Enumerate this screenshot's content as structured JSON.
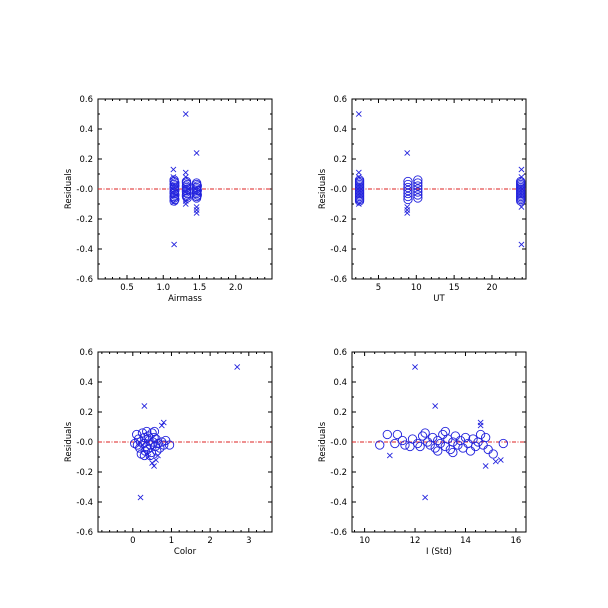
{
  "colors": {
    "marker": "#2222dd",
    "zero_line": "#dd2222",
    "axis": "#000000"
  },
  "chart_data": [
    {
      "type": "scatter",
      "xlabel": "Airmass",
      "ylabel": "Residuals",
      "xlim": [
        0.1,
        2.5
      ],
      "ylim": [
        -0.6,
        0.6
      ],
      "xticks": [
        0.5,
        1.0,
        1.5,
        2.0
      ],
      "xtick_labels": [
        "0.5",
        "1.0",
        "1.5",
        "2.0"
      ],
      "yticks": [
        -0.6,
        -0.4,
        -0.2,
        0.0,
        0.2,
        0.4,
        0.6
      ],
      "ytick_labels": [
        "-0.6",
        "-0.4",
        "-0.2",
        "-0.0",
        "0.2",
        "0.4",
        "0.6"
      ],
      "reference_line": 0,
      "grid": false,
      "series": [
        {
          "marker": "circle",
          "points": [
            [
              1.15,
              0.06
            ],
            [
              1.15,
              0.05
            ],
            [
              1.16,
              0.04
            ],
            [
              1.15,
              0.03
            ],
            [
              1.16,
              0.02
            ],
            [
              1.15,
              0.01
            ],
            [
              1.15,
              0.0
            ],
            [
              1.16,
              -0.01
            ],
            [
              1.15,
              -0.02
            ],
            [
              1.15,
              -0.03
            ],
            [
              1.16,
              -0.04
            ],
            [
              1.15,
              -0.05
            ],
            [
              1.15,
              -0.06
            ],
            [
              1.16,
              -0.07
            ],
            [
              1.15,
              -0.08
            ],
            [
              1.32,
              0.05
            ],
            [
              1.32,
              0.04
            ],
            [
              1.33,
              0.03
            ],
            [
              1.32,
              0.02
            ],
            [
              1.32,
              0.01
            ],
            [
              1.33,
              0.0
            ],
            [
              1.32,
              -0.01
            ],
            [
              1.32,
              -0.02
            ],
            [
              1.33,
              -0.03
            ],
            [
              1.32,
              -0.04
            ],
            [
              1.32,
              -0.05
            ],
            [
              1.33,
              -0.06
            ],
            [
              1.46,
              0.04
            ],
            [
              1.46,
              0.03
            ],
            [
              1.47,
              0.02
            ],
            [
              1.46,
              0.01
            ],
            [
              1.46,
              0.0
            ],
            [
              1.47,
              -0.01
            ],
            [
              1.46,
              -0.02
            ],
            [
              1.46,
              -0.03
            ],
            [
              1.47,
              -0.04
            ],
            [
              1.46,
              -0.05
            ],
            [
              1.46,
              -0.06
            ]
          ]
        },
        {
          "marker": "x",
          "points": [
            [
              1.14,
              0.13
            ],
            [
              1.14,
              0.08
            ],
            [
              1.14,
              -0.09
            ],
            [
              1.15,
              -0.37
            ],
            [
              1.31,
              0.5
            ],
            [
              1.31,
              0.11
            ],
            [
              1.31,
              0.08
            ],
            [
              1.31,
              -0.08
            ],
            [
              1.31,
              -0.1
            ],
            [
              1.46,
              0.24
            ],
            [
              1.46,
              -0.12
            ],
            [
              1.46,
              -0.14
            ],
            [
              1.46,
              -0.16
            ]
          ]
        }
      ]
    },
    {
      "type": "scatter",
      "xlabel": "UT",
      "ylabel": "Residuals",
      "xlim": [
        1.5,
        24.5
      ],
      "ylim": [
        -0.6,
        0.6
      ],
      "xticks": [
        5,
        10,
        15,
        20
      ],
      "xtick_labels": [
        "5",
        "10",
        "15",
        "20"
      ],
      "yticks": [
        -0.6,
        -0.4,
        -0.2,
        0.0,
        0.2,
        0.4,
        0.6
      ],
      "ytick_labels": [
        "-0.6",
        "-0.4",
        "-0.2",
        "-0.0",
        "0.2",
        "0.4",
        "0.6"
      ],
      "reference_line": 0,
      "grid": false,
      "series": [
        {
          "marker": "circle",
          "points": [
            [
              2.5,
              0.06
            ],
            [
              2.5,
              0.05
            ],
            [
              2.5,
              0.04
            ],
            [
              2.5,
              0.03
            ],
            [
              2.5,
              0.02
            ],
            [
              2.5,
              0.01
            ],
            [
              2.5,
              0.0
            ],
            [
              2.5,
              -0.01
            ],
            [
              2.5,
              -0.02
            ],
            [
              2.5,
              -0.03
            ],
            [
              2.5,
              -0.04
            ],
            [
              2.5,
              -0.05
            ],
            [
              2.5,
              -0.06
            ],
            [
              2.5,
              -0.07
            ],
            [
              2.5,
              -0.08
            ],
            [
              8.9,
              0.05
            ],
            [
              8.9,
              0.03
            ],
            [
              8.9,
              0.01
            ],
            [
              8.9,
              -0.01
            ],
            [
              8.9,
              -0.03
            ],
            [
              8.9,
              -0.05
            ],
            [
              8.9,
              -0.07
            ],
            [
              10.2,
              0.06
            ],
            [
              10.2,
              0.04
            ],
            [
              10.2,
              0.02
            ],
            [
              10.2,
              0.0
            ],
            [
              10.2,
              -0.02
            ],
            [
              10.2,
              -0.04
            ],
            [
              10.2,
              -0.06
            ],
            [
              23.8,
              0.05
            ],
            [
              23.8,
              0.04
            ],
            [
              23.8,
              0.03
            ],
            [
              23.8,
              0.02
            ],
            [
              23.8,
              0.01
            ],
            [
              23.8,
              0.0
            ],
            [
              23.8,
              -0.01
            ],
            [
              23.8,
              -0.02
            ],
            [
              23.8,
              -0.03
            ],
            [
              23.8,
              -0.04
            ],
            [
              23.8,
              -0.05
            ],
            [
              23.8,
              -0.06
            ],
            [
              23.8,
              -0.07
            ],
            [
              23.8,
              -0.08
            ]
          ]
        },
        {
          "marker": "x",
          "points": [
            [
              2.4,
              0.5
            ],
            [
              2.4,
              0.11
            ],
            [
              2.4,
              0.08
            ],
            [
              2.4,
              -0.1
            ],
            [
              8.8,
              0.24
            ],
            [
              8.8,
              -0.12
            ],
            [
              8.8,
              -0.14
            ],
            [
              8.8,
              -0.16
            ],
            [
              23.9,
              0.13
            ],
            [
              23.9,
              0.08
            ],
            [
              23.9,
              -0.12
            ],
            [
              23.9,
              -0.37
            ]
          ]
        }
      ]
    },
    {
      "type": "scatter",
      "xlabel": "Color",
      "ylabel": "Residuals",
      "xlim": [
        -0.9,
        3.6
      ],
      "ylim": [
        -0.6,
        0.6
      ],
      "xticks": [
        0,
        1,
        2,
        3
      ],
      "xtick_labels": [
        "0",
        "1",
        "2",
        "3"
      ],
      "yticks": [
        -0.6,
        -0.4,
        -0.2,
        0.0,
        0.2,
        0.4,
        0.6
      ],
      "ytick_labels": [
        "-0.6",
        "-0.4",
        "-0.2",
        "-0.0",
        "0.2",
        "0.4",
        "0.6"
      ],
      "reference_line": 0,
      "grid": false,
      "series": [
        {
          "marker": "circle",
          "points": [
            [
              0.1,
              0.05
            ],
            [
              0.15,
              0.02
            ],
            [
              0.2,
              0.0
            ],
            [
              0.12,
              -0.02
            ],
            [
              0.18,
              -0.04
            ],
            [
              0.25,
              0.06
            ],
            [
              0.3,
              0.03
            ],
            [
              0.28,
              -0.01
            ],
            [
              0.35,
              -0.03
            ],
            [
              0.32,
              -0.06
            ],
            [
              0.4,
              0.04
            ],
            [
              0.42,
              0.01
            ],
            [
              0.45,
              -0.02
            ],
            [
              0.38,
              -0.05
            ],
            [
              0.5,
              0.06
            ],
            [
              0.55,
              0.03
            ],
            [
              0.52,
              0.0
            ],
            [
              0.58,
              -0.03
            ],
            [
              0.48,
              -0.07
            ],
            [
              0.6,
              0.02
            ],
            [
              0.65,
              -0.01
            ],
            [
              0.7,
              -0.04
            ],
            [
              0.75,
              0.0
            ],
            [
              0.8,
              -0.02
            ],
            [
              0.22,
              -0.08
            ],
            [
              0.3,
              -0.09
            ],
            [
              0.45,
              -0.09
            ],
            [
              0.62,
              -0.06
            ],
            [
              0.85,
              0.01
            ],
            [
              0.95,
              -0.02
            ],
            [
              0.05,
              -0.01
            ],
            [
              0.36,
              0.07
            ],
            [
              0.56,
              0.07
            ]
          ]
        },
        {
          "marker": "x",
          "points": [
            [
              2.7,
              0.5
            ],
            [
              0.3,
              0.24
            ],
            [
              0.8,
              0.13
            ],
            [
              0.75,
              0.11
            ],
            [
              0.2,
              -0.37
            ],
            [
              0.55,
              -0.16
            ],
            [
              0.5,
              -0.14
            ],
            [
              0.6,
              -0.12
            ],
            [
              0.4,
              -0.1
            ],
            [
              0.65,
              -0.09
            ]
          ]
        }
      ]
    },
    {
      "type": "scatter",
      "xlabel": "I (Std)",
      "ylabel": "Residuals",
      "xlim": [
        9.5,
        16.4
      ],
      "ylim": [
        -0.6,
        0.6
      ],
      "xticks": [
        10,
        12,
        14,
        16
      ],
      "xtick_labels": [
        "10",
        "12",
        "14",
        "16"
      ],
      "yticks": [
        -0.6,
        -0.4,
        -0.2,
        0.0,
        0.2,
        0.4,
        0.6
      ],
      "ytick_labels": [
        "-0.6",
        "-0.4",
        "-0.2",
        "-0.0",
        "0.2",
        "0.4",
        "0.6"
      ],
      "reference_line": 0,
      "grid": false,
      "series": [
        {
          "marker": "circle",
          "points": [
            [
              10.6,
              -0.02
            ],
            [
              10.9,
              0.05
            ],
            [
              11.3,
              0.05
            ],
            [
              11.2,
              -0.01
            ],
            [
              11.5,
              0.01
            ],
            [
              11.6,
              -0.02
            ],
            [
              11.8,
              -0.03
            ],
            [
              11.9,
              0.02
            ],
            [
              12.1,
              -0.01
            ],
            [
              12.2,
              -0.03
            ],
            [
              12.3,
              0.04
            ],
            [
              12.4,
              0.06
            ],
            [
              12.5,
              0.0
            ],
            [
              12.6,
              -0.02
            ],
            [
              12.7,
              0.03
            ],
            [
              12.8,
              -0.04
            ],
            [
              12.9,
              0.01
            ],
            [
              13.0,
              -0.01
            ],
            [
              13.1,
              0.05
            ],
            [
              13.2,
              0.07
            ],
            [
              13.2,
              -0.03
            ],
            [
              13.3,
              0.02
            ],
            [
              13.4,
              -0.05
            ],
            [
              13.5,
              0.0
            ],
            [
              13.6,
              0.04
            ],
            [
              13.7,
              -0.02
            ],
            [
              13.8,
              0.01
            ],
            [
              13.9,
              -0.04
            ],
            [
              14.0,
              0.03
            ],
            [
              14.1,
              -0.01
            ],
            [
              14.2,
              -0.06
            ],
            [
              14.3,
              0.02
            ],
            [
              14.4,
              -0.03
            ],
            [
              14.5,
              0.0
            ],
            [
              14.6,
              0.05
            ],
            [
              14.7,
              -0.02
            ],
            [
              14.8,
              0.03
            ],
            [
              14.9,
              -0.05
            ],
            [
              15.1,
              -0.08
            ],
            [
              15.5,
              -0.01
            ],
            [
              12.9,
              -0.06
            ],
            [
              13.5,
              -0.07
            ]
          ]
        },
        {
          "marker": "x",
          "points": [
            [
              12.0,
              0.5
            ],
            [
              12.8,
              0.24
            ],
            [
              14.6,
              0.13
            ],
            [
              14.6,
              0.11
            ],
            [
              11.0,
              -0.09
            ],
            [
              12.4,
              -0.37
            ],
            [
              14.8,
              -0.16
            ],
            [
              15.2,
              -0.13
            ],
            [
              15.4,
              -0.12
            ]
          ]
        }
      ]
    }
  ]
}
